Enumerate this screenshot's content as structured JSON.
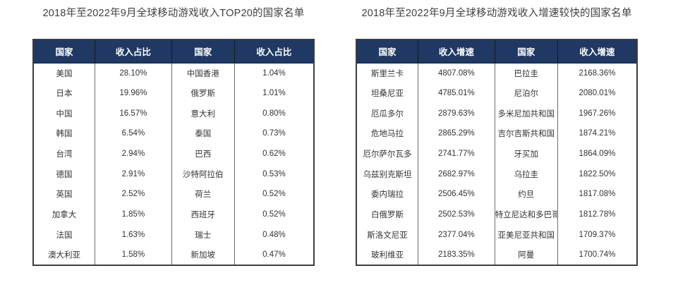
{
  "colors": {
    "header_bg": "#1F3864",
    "header_text": "#ffffff",
    "border_outer": "#3d3d3d",
    "border_inner": "#6e6e6e",
    "title_text": "#404040",
    "cell_text": "#333333",
    "page_bg": "#ffffff"
  },
  "left_table": {
    "title": "2018年至2022年9月全球移动游戏收入TOP20的国家名单",
    "headers": [
      "国家",
      "收入占比",
      "国家",
      "收入占比"
    ],
    "rows": [
      [
        "美国",
        "28.10%",
        "中国香港",
        "1.04%"
      ],
      [
        "日本",
        "19.96%",
        "俄罗斯",
        "1.01%"
      ],
      [
        "中国",
        "16.57%",
        "意大利",
        "0.80%"
      ],
      [
        "韩国",
        "6.54%",
        "泰国",
        "0.73%"
      ],
      [
        "台湾",
        "2.94%",
        "巴西",
        "0.62%"
      ],
      [
        "德国",
        "2.91%",
        "沙特阿拉伯",
        "0.53%"
      ],
      [
        "英国",
        "2.52%",
        "荷兰",
        "0.52%"
      ],
      [
        "加拿大",
        "1.85%",
        "西班牙",
        "0.52%"
      ],
      [
        "法国",
        "1.63%",
        "瑞士",
        "0.48%"
      ],
      [
        "澳大利亚",
        "1.58%",
        "新加坡",
        "0.47%"
      ]
    ]
  },
  "right_table": {
    "title": "2018年至2022年9月全球移动游戏收入增速较快的国家名单",
    "headers": [
      "国家",
      "收入增速",
      "国家",
      "收入增速"
    ],
    "rows": [
      [
        "斯里兰卡",
        "4807.08%",
        "巴拉圭",
        "2168.36%"
      ],
      [
        "坦桑尼亚",
        "4785.01%",
        "尼泊尔",
        "2080.01%"
      ],
      [
        "厄瓜多尔",
        "2879.63%",
        "多米尼加共和国",
        "1967.26%"
      ],
      [
        "危地马拉",
        "2865.29%",
        "吉尔吉斯共和国",
        "1874.21%"
      ],
      [
        "厄尔萨尔瓦多",
        "2741.77%",
        "牙买加",
        "1864.09%"
      ],
      [
        "乌兹别克斯坦",
        "2682.97%",
        "乌拉圭",
        "1822.50%"
      ],
      [
        "委内瑞拉",
        "2506.45%",
        "约旦",
        "1817.08%"
      ],
      [
        "白俄罗斯",
        "2502.53%",
        "特立尼达和多巴哥",
        "1812.78%"
      ],
      [
        "斯洛文尼亚",
        "2377.04%",
        "亚美尼亚共和国",
        "1709.37%"
      ],
      [
        "玻利维亚",
        "2183.35%",
        "阿曼",
        "1700.74%"
      ]
    ]
  }
}
